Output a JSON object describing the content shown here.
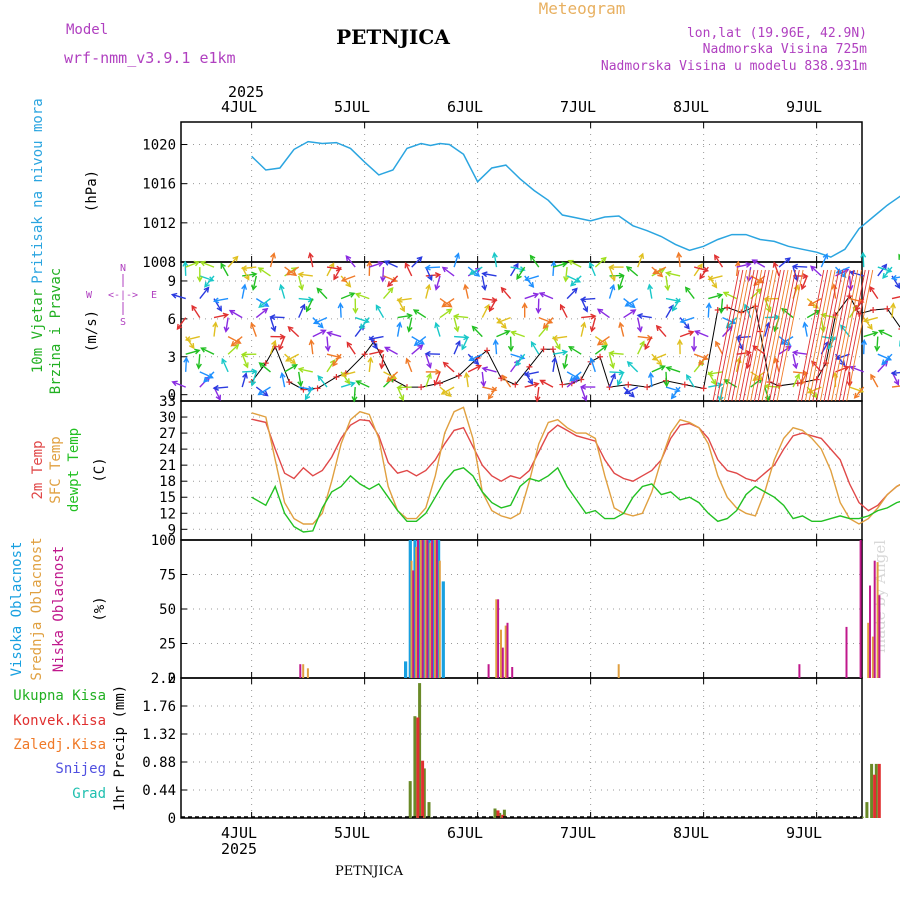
{
  "header": {
    "model_label": "Model",
    "model_name": "wrf-nmm_v3.9.1 e1km",
    "station": "PETNJICA",
    "meteogram": "Meteogram",
    "lonlat": "lon,lat (19.96E, 42.9N)",
    "elev": "Nadmorska Visina 725m",
    "elev_model": "Nadmorska Visina u modelu 838.931m",
    "year": "2025",
    "footer_station": "PETNJICA",
    "watermark": "made by Angel"
  },
  "colors": {
    "pressure": "#2ba5e0",
    "temp2m": "#e04848",
    "sfc": "#e0a040",
    "dew": "#22c022",
    "high_cloud": "#18a0e0",
    "mid_cloud": "#e0a040",
    "low_cloud": "#c0188c",
    "total_precip": "#22b022",
    "conv": "#e03030",
    "frozen": "#f07a28",
    "snow": "#5050e0",
    "grad": "#20c0b0"
  },
  "days": [
    "4JUL",
    "5JUL",
    "6JUL",
    "7JUL",
    "8JUL",
    "9JUL"
  ],
  "panels": {
    "pressure": {
      "ylabel_main": "Pritisak na nivou mora",
      "ylabel_unit": "(hPa)"
    },
    "wind": {
      "ylabel_1": "10m Vjetar",
      "ylabel_2": "Brzina i Pravac",
      "ylabel_unit": "(m/s)",
      "compass_n": "N",
      "compass_w": "W",
      "compass_e": "E",
      "compass_s": "S",
      "compass_arrows": "<-|->"
    },
    "temp": {
      "ylabel_1": "2m Temp",
      "ylabel_2": "SFC Temp",
      "ylabel_3": "dewpt Temp",
      "ylabel_unit": "(C)"
    },
    "cloud": {
      "ylabel_1": "Visoka Oblacnost",
      "ylabel_2": "Srednja Oblacnost",
      "ylabel_3": "Niska Oblacnost",
      "ylabel_unit": "(%)"
    },
    "precip": {
      "legend": [
        "Ukupna Kisa",
        "Konvek.Kisa",
        "Zaledj.Kisa",
        "Snijeg",
        "Grad"
      ],
      "ylabel_unit": "1hr Precip (mm)"
    }
  },
  "chart_data": [
    {
      "type": "line",
      "title": "Pritisak na nivou mora",
      "ylabel": "(hPa)",
      "ylim": [
        1008,
        1022.3
      ],
      "yticks": [
        "1008",
        "1012",
        "1016",
        "1020"
      ],
      "x_hours": [
        0,
        3,
        6,
        9,
        12,
        15,
        18,
        21,
        24,
        27,
        30,
        33,
        36,
        38,
        40,
        42,
        45,
        48,
        51,
        54,
        57,
        60,
        63,
        66,
        69,
        72,
        75,
        78,
        81,
        84,
        87,
        90,
        93,
        96,
        99,
        102,
        105,
        108,
        111,
        114,
        117,
        120,
        123,
        126,
        129,
        132,
        135,
        138,
        141,
        144
      ],
      "values": [
        1018.8,
        1017.4,
        1017.6,
        1019.5,
        1020.3,
        1020.1,
        1020.2,
        1019.6,
        1018.2,
        1016.9,
        1017.4,
        1019.6,
        1020.1,
        1019.9,
        1020.1,
        1020.0,
        1019.0,
        1016.2,
        1017.6,
        1017.9,
        1016.5,
        1015.3,
        1014.3,
        1012.8,
        1012.5,
        1012.2,
        1012.6,
        1012.7,
        1011.7,
        1011.2,
        1010.6,
        1009.8,
        1009.2,
        1009.6,
        1010.3,
        1010.8,
        1010.8,
        1010.3,
        1010.1,
        1009.6,
        1009.3,
        1009.0,
        1008.5,
        1009.3,
        1011.4,
        1012.6,
        1013.8,
        1014.8,
        1015.2,
        1014.6
      ]
    },
    {
      "type": "line",
      "title": "10m Vjetar Brzina i Pravac",
      "ylabel": "(m/s)",
      "ylim": [
        -0.5,
        10.5
      ],
      "yticks": [
        "0",
        "3",
        "6",
        "9"
      ],
      "series": [
        {
          "name": "10m Vjetar",
          "x_hours": [
            0,
            3,
            5,
            8,
            11,
            14,
            18,
            20,
            24,
            26,
            30,
            33,
            36,
            40,
            44,
            48,
            50,
            53,
            56,
            59,
            62,
            64,
            66,
            68,
            70,
            72,
            74,
            76,
            80,
            84,
            88,
            92,
            96,
            99,
            101,
            104,
            107,
            108,
            110,
            112,
            116,
            120,
            122,
            124,
            127,
            129,
            132,
            135,
            138,
            141,
            144
          ],
          "values": [
            1.0,
            2.5,
            3.8,
            1.0,
            0.4,
            0.5,
            1.4,
            1.7,
            3.2,
            4.2,
            1.2,
            0.6,
            0.6,
            0.9,
            1.5,
            2.9,
            3.5,
            1.3,
            0.8,
            2.2,
            3.6,
            3.6,
            0.8,
            0.9,
            1.2,
            2.6,
            3.0,
            0.6,
            0.8,
            0.6,
            1.1,
            0.8,
            0.5,
            6.7,
            6.9,
            6.5,
            7.0,
            5.0,
            1.0,
            0.7,
            0.9,
            1.2,
            2.5,
            6.3,
            7.8,
            6.4,
            6.7,
            6.8,
            5.2,
            1.0,
            3.7
          ]
        }
      ]
    },
    {
      "type": "line",
      "title": "2m Temp / SFC Temp / dewpt Temp",
      "ylabel": "(C)",
      "ylim": [
        7,
        33
      ],
      "yticks": [
        "9",
        "12",
        "15",
        "18",
        "21",
        "24",
        "27",
        "30",
        "33"
      ],
      "series": [
        {
          "name": "2m Temp",
          "x_hours": [
            0,
            3,
            5,
            7,
            9,
            11,
            13,
            15,
            17,
            19,
            21,
            23,
            25,
            27,
            29,
            31,
            33,
            35,
            37,
            39,
            41,
            43,
            45,
            47,
            49,
            51,
            53,
            55,
            57,
            59,
            61,
            63,
            65,
            67,
            69,
            71,
            73,
            75,
            77,
            79,
            81,
            83,
            85,
            87,
            89,
            91,
            93,
            95,
            97,
            99,
            101,
            103,
            105,
            107,
            109,
            111,
            113,
            115,
            117,
            119,
            121,
            123,
            125,
            127,
            129,
            131,
            133,
            135,
            137,
            139,
            141,
            144
          ],
          "values": [
            29.6,
            29.0,
            24.0,
            19.5,
            18.5,
            20.5,
            19.0,
            20.0,
            22.5,
            26.0,
            28.5,
            29.5,
            29.3,
            26.5,
            21.5,
            19.5,
            20.0,
            19.0,
            20.0,
            22.0,
            25.0,
            27.5,
            28.0,
            24.5,
            21.0,
            19.0,
            18.0,
            19.0,
            18.5,
            20.0,
            23.5,
            27.0,
            28.5,
            27.5,
            26.5,
            26.0,
            25.5,
            22.0,
            19.5,
            18.5,
            18.0,
            19.0,
            20.0,
            22.0,
            26.0,
            28.5,
            28.8,
            28.0,
            26.0,
            22.0,
            20.0,
            19.5,
            18.5,
            18.0,
            19.5,
            21.0,
            24.0,
            26.5,
            27.0,
            26.5,
            26.0,
            24.0,
            22.0,
            17.5,
            14.0,
            12.5,
            13.5,
            15.5,
            17.0,
            18.0,
            18.5,
            19.0
          ]
        },
        {
          "name": "SFC Temp",
          "x_hours": [
            0,
            3,
            5,
            7,
            9,
            11,
            13,
            15,
            17,
            19,
            21,
            23,
            25,
            27,
            29,
            31,
            33,
            35,
            37,
            39,
            41,
            43,
            45,
            47,
            49,
            51,
            53,
            55,
            57,
            59,
            61,
            63,
            65,
            67,
            69,
            71,
            73,
            75,
            77,
            79,
            81,
            83,
            85,
            87,
            89,
            91,
            93,
            95,
            97,
            99,
            101,
            103,
            105,
            107,
            109,
            111,
            113,
            115,
            117,
            119,
            121,
            123,
            125,
            127,
            129,
            131,
            133,
            135,
            137,
            139,
            141,
            144
          ],
          "values": [
            30.8,
            30.0,
            22.0,
            14.0,
            11.0,
            10.0,
            10.0,
            12.0,
            18.0,
            25.0,
            29.5,
            31.0,
            30.5,
            26.0,
            17.0,
            12.5,
            11.0,
            11.0,
            13.0,
            19.0,
            27.0,
            31.0,
            31.8,
            26.0,
            16.0,
            12.5,
            11.5,
            11.0,
            12.0,
            18.0,
            25.0,
            29.0,
            29.5,
            28.0,
            27.0,
            27.0,
            26.0,
            19.0,
            13.0,
            12.0,
            11.5,
            12.0,
            16.0,
            22.0,
            27.0,
            29.5,
            29.0,
            28.0,
            25.0,
            19.0,
            15.0,
            13.0,
            12.0,
            11.5,
            16.0,
            22.0,
            26.0,
            28.0,
            27.5,
            26.0,
            24.0,
            20.0,
            14.0,
            11.0,
            10.0,
            11.0,
            13.0,
            15.5,
            17.0,
            18.0,
            19.0,
            20.0
          ]
        },
        {
          "name": "dewpt Temp",
          "x_hours": [
            0,
            3,
            5,
            7,
            9,
            11,
            13,
            15,
            17,
            19,
            21,
            23,
            25,
            27,
            29,
            31,
            33,
            35,
            37,
            39,
            41,
            43,
            45,
            47,
            49,
            51,
            53,
            55,
            57,
            59,
            61,
            63,
            65,
            67,
            69,
            71,
            73,
            75,
            77,
            79,
            81,
            83,
            85,
            87,
            89,
            91,
            93,
            95,
            97,
            99,
            101,
            103,
            105,
            107,
            109,
            111,
            113,
            115,
            117,
            119,
            121,
            123,
            125,
            127,
            129,
            131,
            133,
            135,
            137,
            139,
            141,
            144
          ],
          "values": [
            15.0,
            13.5,
            17.0,
            12.0,
            9.5,
            8.5,
            8.7,
            13.0,
            16.0,
            17.0,
            19.0,
            17.5,
            16.5,
            17.5,
            15.0,
            12.5,
            10.5,
            10.5,
            12.0,
            15.0,
            18.0,
            20.0,
            20.5,
            19.0,
            16.0,
            14.0,
            13.0,
            13.5,
            17.0,
            18.5,
            18.0,
            19.0,
            20.5,
            17.0,
            14.5,
            12.0,
            12.5,
            11.0,
            11.0,
            12.0,
            15.0,
            17.0,
            17.5,
            15.5,
            16.0,
            14.5,
            15.0,
            14.0,
            12.0,
            10.5,
            11.0,
            12.5,
            15.5,
            17.0,
            16.0,
            15.0,
            13.5,
            11.0,
            11.5,
            10.5,
            10.5,
            11.0,
            11.5,
            11.0,
            11.0,
            11.5,
            12.5,
            13.0,
            14.0,
            14.5,
            14.0,
            16.0
          ]
        }
      ]
    },
    {
      "type": "bar",
      "title": "Visoka / Srednja / Niska Oblacnost",
      "ylabel": "(%)",
      "ylim": [
        0,
        100
      ],
      "yticks": [
        "0",
        "25",
        "50",
        "75",
        "100"
      ],
      "series": [
        {
          "name": "Visoka Oblacnost",
          "x_hours": [
            33,
            34,
            35,
            36,
            37,
            38,
            39,
            40,
            41,
            42
          ],
          "values": [
            12,
            100,
            100,
            100,
            100,
            100,
            100,
            100,
            70,
            0
          ]
        },
        {
          "name": "Srednja Oblacnost",
          "x_hours": [
            11,
            12,
            34,
            35,
            36,
            37,
            38,
            39,
            40,
            52,
            53,
            54,
            78,
            131,
            132,
            133
          ],
          "values": [
            10,
            7,
            85,
            95,
            100,
            100,
            98,
            100,
            85,
            57,
            35,
            38,
            10,
            40,
            30,
            84
          ]
        },
        {
          "name": "Niska Oblacnost",
          "x_hours": [
            10,
            34,
            35,
            36,
            37,
            38,
            39,
            50,
            52,
            53,
            54,
            55,
            116,
            126,
            129,
            131,
            132,
            133
          ],
          "values": [
            10,
            78,
            100,
            100,
            100,
            100,
            100,
            10,
            57,
            22,
            40,
            8,
            10,
            37,
            100,
            67,
            85,
            60
          ]
        }
      ]
    },
    {
      "type": "bar",
      "title": "1hr Precip",
      "ylabel": "1hr Precip (mm)",
      "ylim": [
        0,
        2.2
      ],
      "yticks": [
        "0",
        "0.44",
        "0.88",
        "1.32",
        "1.76",
        "2.2"
      ],
      "series": [
        {
          "name": "Ukupna Kisa",
          "x_hours": [
            34,
            35,
            36,
            37,
            38,
            52,
            53,
            54,
            130,
            131,
            132,
            133
          ],
          "values": [
            0.58,
            1.6,
            2.12,
            0.78,
            0.25,
            0.15,
            0.08,
            0.13,
            0.02,
            0.25,
            0.85,
            0.85
          ]
        },
        {
          "name": "Konvek.Kisa",
          "x_hours": [
            35,
            36,
            52,
            53,
            132,
            133
          ],
          "values": [
            1.58,
            0.9,
            0.12,
            0.05,
            0.68,
            0.85
          ]
        }
      ]
    }
  ]
}
